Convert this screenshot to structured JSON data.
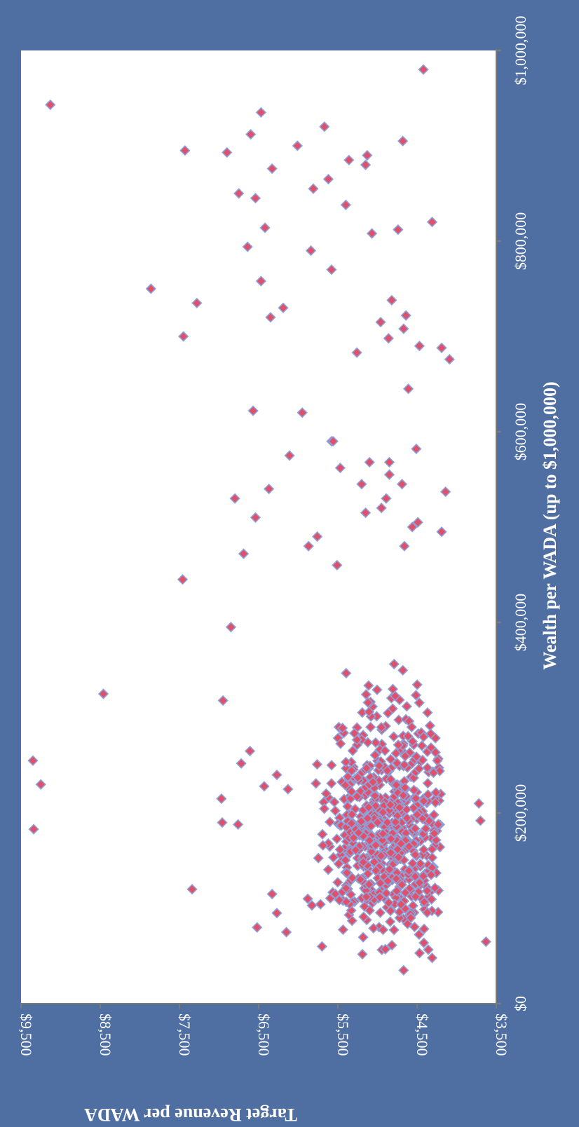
{
  "chart_data": {
    "type": "scatter",
    "xlabel": "Wealth per WADA (up to $1,000,000)",
    "ylabel": "Target Revenue per WADA",
    "xlim": [
      0,
      1000000
    ],
    "ylim": [
      3500,
      9500
    ],
    "x_ticks": [
      "$0",
      "$200,000",
      "$400,000",
      "$600,000",
      "$800,000",
      "$1,000,000"
    ],
    "y_ticks": [
      "$3,500",
      "$4,500",
      "$5,500",
      "$6,500",
      "$7,500",
      "$8,500",
      "$9,500"
    ],
    "x_tick_values": [
      0,
      200000,
      400000,
      600000,
      800000,
      1000000
    ],
    "y_tick_values": [
      3500,
      4500,
      5500,
      6500,
      7500,
      8500,
      9500
    ],
    "grid": false,
    "legend": "none",
    "marker": "diamond",
    "colors": {
      "background": "#4f6fa2",
      "plot_area": "#ffffff",
      "marker_fill": "#e0506a",
      "marker_edge": "#8da0d8",
      "axis": "#7a7a7a"
    },
    "points": [
      [
        980000,
        4420
      ],
      [
        943000,
        9130
      ],
      [
        935000,
        6470
      ],
      [
        920000,
        5670
      ],
      [
        912000,
        6600
      ],
      [
        905000,
        4680
      ],
      [
        900000,
        6010
      ],
      [
        895000,
        7430
      ],
      [
        893000,
        6900
      ],
      [
        890000,
        5130
      ],
      [
        885000,
        5360
      ],
      [
        880000,
        5150
      ],
      [
        876000,
        6330
      ],
      [
        865000,
        5620
      ],
      [
        855000,
        5810
      ],
      [
        850000,
        6750
      ],
      [
        845000,
        6540
      ],
      [
        838000,
        5400
      ],
      [
        820000,
        4310
      ],
      [
        814000,
        6420
      ],
      [
        812000,
        4740
      ],
      [
        808000,
        5070
      ],
      [
        794000,
        6640
      ],
      [
        790000,
        5840
      ],
      [
        770000,
        5580
      ],
      [
        758000,
        6470
      ],
      [
        750000,
        7860
      ],
      [
        738000,
        4820
      ],
      [
        735000,
        7280
      ],
      [
        730000,
        6190
      ],
      [
        722000,
        4640
      ],
      [
        720000,
        6350
      ],
      [
        715000,
        4960
      ],
      [
        708000,
        4670
      ],
      [
        700000,
        7450
      ],
      [
        698000,
        4860
      ],
      [
        690000,
        4470
      ],
      [
        688000,
        4190
      ],
      [
        683000,
        5260
      ],
      [
        676000,
        4090
      ],
      [
        645000,
        4610
      ],
      [
        622000,
        6570
      ],
      [
        620000,
        5950
      ],
      [
        590000,
        5580
      ],
      [
        590000,
        5560
      ],
      [
        582000,
        4510
      ],
      [
        575000,
        6110
      ],
      [
        568000,
        5100
      ],
      [
        568000,
        4850
      ],
      [
        562000,
        5470
      ],
      [
        555000,
        4850
      ],
      [
        545000,
        5200
      ],
      [
        545000,
        4690
      ],
      [
        540000,
        6370
      ],
      [
        537000,
        4140
      ],
      [
        530000,
        4890
      ],
      [
        530000,
        6800
      ],
      [
        520000,
        4950
      ],
      [
        515000,
        5150
      ],
      [
        510000,
        6540
      ],
      [
        505000,
        4490
      ],
      [
        500000,
        4560
      ],
      [
        495000,
        4190
      ],
      [
        490000,
        5760
      ],
      [
        480000,
        5870
      ],
      [
        480000,
        4660
      ],
      [
        472000,
        6690
      ],
      [
        460000,
        5510
      ],
      [
        445000,
        7460
      ],
      [
        395000,
        6850
      ],
      [
        325000,
        8460
      ],
      [
        318000,
        6950
      ],
      [
        265000,
        6610
      ],
      [
        255000,
        9350
      ],
      [
        252000,
        6720
      ],
      [
        240000,
        6270
      ],
      [
        230000,
        9250
      ],
      [
        228000,
        6430
      ],
      [
        225000,
        6130
      ],
      [
        215000,
        6970
      ],
      [
        210000,
        3720
      ],
      [
        192000,
        3700
      ],
      [
        190000,
        6960
      ],
      [
        188000,
        6760
      ],
      [
        183000,
        9340
      ],
      [
        120000,
        7340
      ],
      [
        115000,
        6330
      ],
      [
        110000,
        5880
      ],
      [
        95000,
        6270
      ],
      [
        90000,
        4580
      ],
      [
        80000,
        6520
      ],
      [
        75000,
        6150
      ],
      [
        65000,
        3630
      ],
      [
        60000,
        5700
      ],
      [
        48000,
        4310
      ],
      [
        35000,
        4670
      ]
    ],
    "cluster": {
      "x_range": [
        30000,
        420000
      ],
      "y_range": [
        4200,
        5900
      ],
      "x_center": 160000,
      "y_center": 4850,
      "count": 700
    }
  }
}
